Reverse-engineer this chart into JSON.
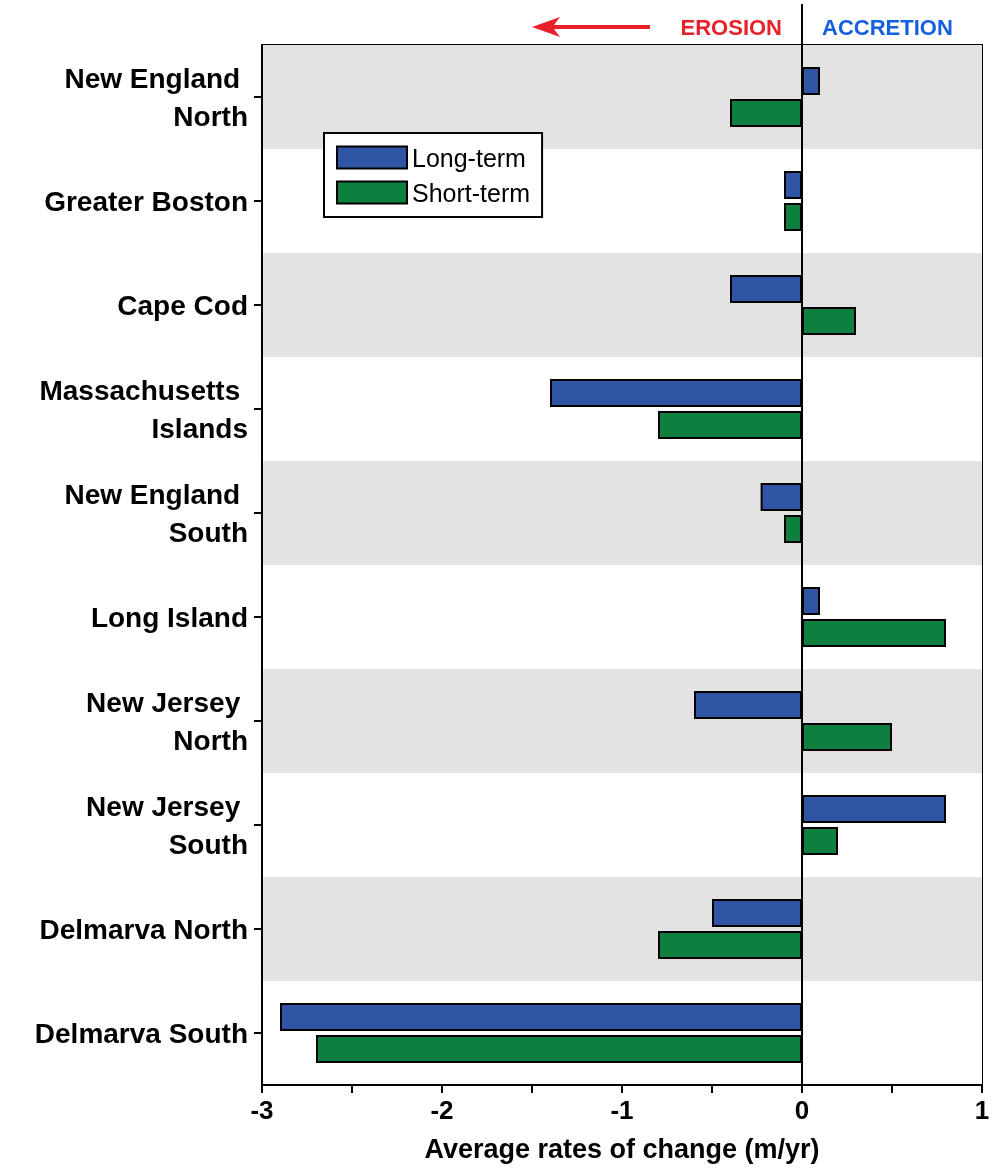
{
  "chart_data": {
    "type": "bar",
    "orientation": "horizontal",
    "xlabel": "Average rates of change (m/yr)",
    "categories": [
      "New England North",
      "Greater Boston",
      "Cape Cod",
      "Massachusetts Islands",
      "New England South",
      "Long Island",
      "New Jersey North",
      "New Jersey South",
      "Delmarva North",
      "Delmarva South"
    ],
    "series": [
      {
        "name": "Long-term",
        "color": "#2f55a4",
        "values": [
          0.1,
          -0.1,
          -0.4,
          -1.4,
          -0.23,
          0.1,
          -0.6,
          0.8,
          -0.5,
          -2.9
        ]
      },
      {
        "name": "Short-term",
        "color": "#0f7f40",
        "values": [
          -0.4,
          -0.1,
          0.3,
          -0.8,
          -0.1,
          0.8,
          0.5,
          0.2,
          -0.8,
          -2.7
        ]
      }
    ],
    "xlim": [
      -3,
      1
    ],
    "xticks": [
      -3,
      {
        "value": -2.5,
        "label": null
      },
      -2,
      {
        "value": -1.5,
        "label": null
      },
      -1,
      {
        "value": -0.5,
        "label": null
      },
      0,
      {
        "value": 0.5,
        "label": null
      },
      1
    ],
    "annotations": [
      "EROSION",
      "ACCRETION"
    ],
    "ref_lines": [
      {
        "axis": "x",
        "value": 0
      }
    ],
    "legend": "top left",
    "grid": false
  }
}
